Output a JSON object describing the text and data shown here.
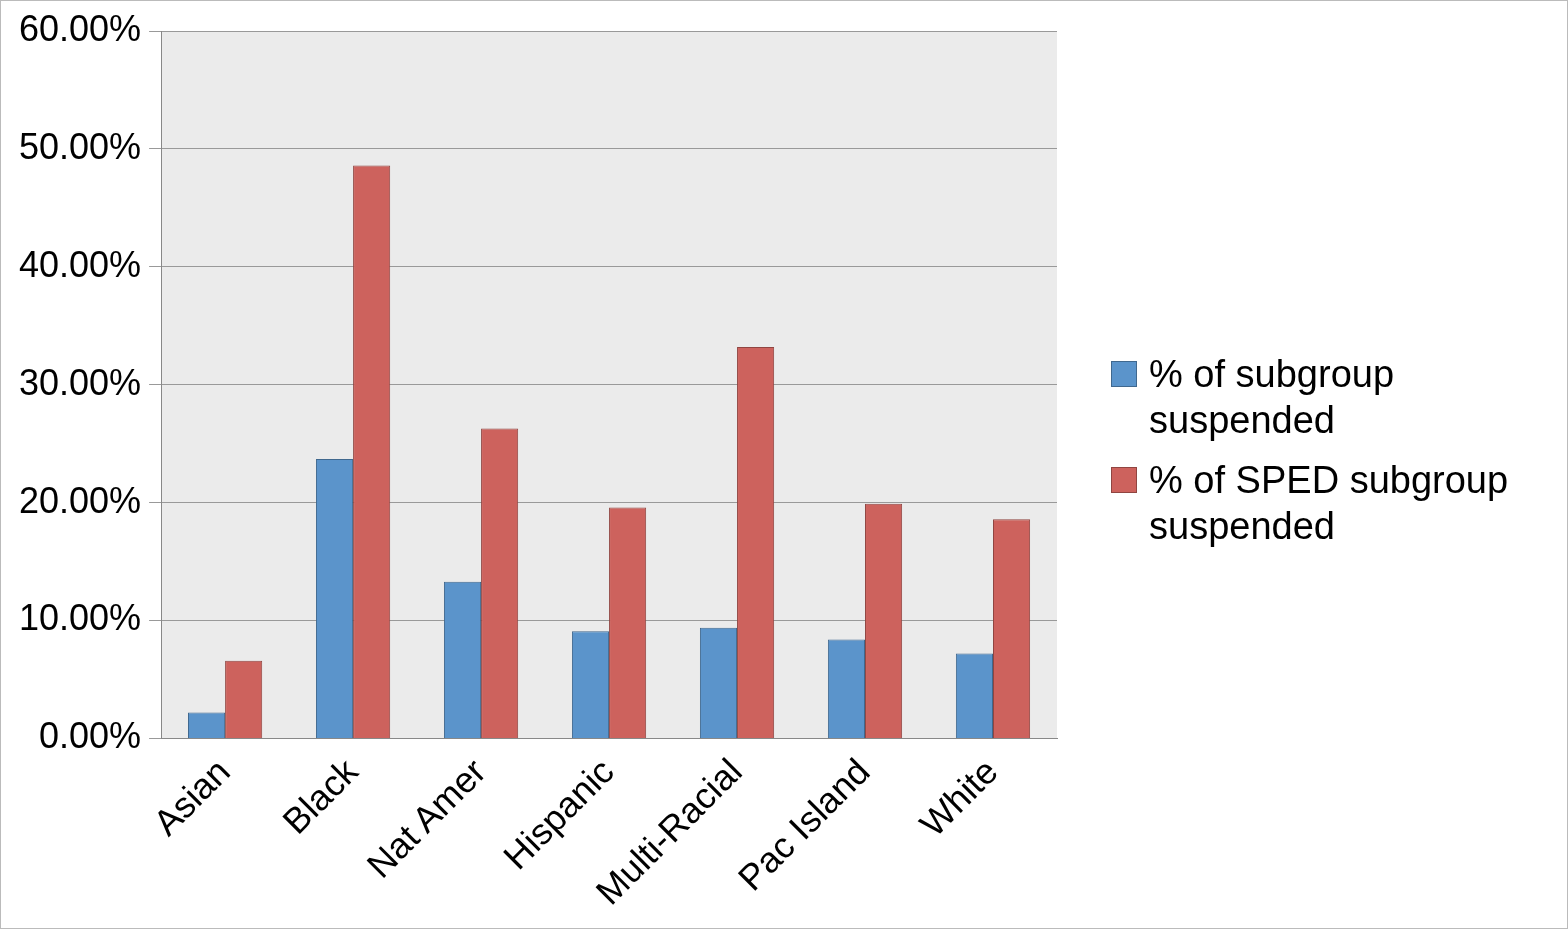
{
  "chart_data": {
    "type": "bar",
    "categories": [
      "Asian",
      "Black",
      "Nat Amer",
      "Hispanic",
      "Multi-Racial",
      "Pac Island",
      "White"
    ],
    "series": [
      {
        "name": "% of subgroup suspended",
        "color": "#5b94cb",
        "values": [
          2.2,
          23.7,
          13.3,
          9.1,
          9.4,
          8.4,
          7.2
        ]
      },
      {
        "name": "% of SPED subgroup suspended",
        "color": "#cd625d",
        "values": [
          6.6,
          48.6,
          26.3,
          19.6,
          33.2,
          19.9,
          18.6
        ]
      }
    ],
    "ylim": [
      0,
      60
    ],
    "yticks": [
      {
        "value": 0,
        "label": "0.00%"
      },
      {
        "value": 10,
        "label": "10.00%"
      },
      {
        "value": 20,
        "label": "20.00%"
      },
      {
        "value": 30,
        "label": "30.00%"
      },
      {
        "value": 40,
        "label": "40.00%"
      },
      {
        "value": 50,
        "label": "50.00%"
      },
      {
        "value": 60,
        "label": "60.00%"
      }
    ],
    "grid": "y",
    "legend": "right"
  }
}
